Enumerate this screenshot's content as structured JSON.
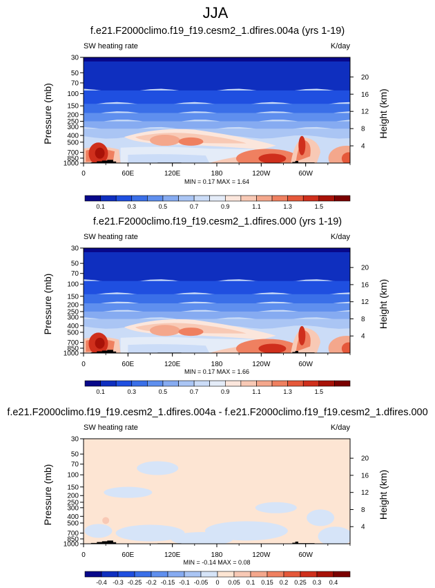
{
  "figure": {
    "title": "JJA"
  },
  "chart_data": [
    {
      "type": "heatmap",
      "title": "f.e21.F2000climo.f19_f19.cesm2_1.dfires.004a (yrs 1-19)",
      "left_label": "SW heating rate",
      "right_label": "K/day",
      "ylabel": "Pressure (mb)",
      "ylabel_right": "Height (km)",
      "y_ticks": [
        "30",
        "50",
        "70",
        "100",
        "150",
        "200",
        "250",
        "300",
        "400",
        "500",
        "700",
        "850",
        "1000"
      ],
      "y_tick_values": [
        30,
        50,
        70,
        100,
        150,
        200,
        250,
        300,
        400,
        500,
        700,
        850,
        1000
      ],
      "y_tick_labels_shown": [
        "30",
        "50",
        "70",
        "100",
        "150",
        "200",
        "250",
        "300",
        "400",
        "500",
        "700",
        "850",
        "1000"
      ],
      "height_ticks": [
        "20",
        "16",
        "12",
        "8",
        "4"
      ],
      "height_tick_values": [
        20,
        16,
        12,
        8,
        4
      ],
      "x_ticks": [
        "0",
        "60E",
        "120E",
        "180",
        "120W",
        "60W"
      ],
      "x_tick_values": [
        0,
        60,
        120,
        180,
        240,
        300
      ],
      "xlim": [
        0,
        360
      ],
      "ylim": [
        1000,
        30
      ],
      "minmax_text": "MIN =  0.17  MAX =  1.64",
      "colorbar": {
        "labels": [
          "0.1",
          "0.3",
          "0.5",
          "0.7",
          "0.9",
          "1.1",
          "1.3",
          "1.5"
        ],
        "colors": [
          "#08088a",
          "#0f2fbf",
          "#1f4fe0",
          "#3a6fe8",
          "#5f8fee",
          "#86abf1",
          "#aac5f4",
          "#cbdcf7",
          "#e4ecf8",
          "#fbe6dc",
          "#f8c9b5",
          "#f4a78c",
          "#ef8060",
          "#e5583a",
          "#cf2f1c",
          "#a81208",
          "#7a0000"
        ]
      },
      "palette": "diverging-blue-red"
    },
    {
      "type": "heatmap",
      "title": "f.e21.F2000climo.f19_f19.cesm2_1.dfires.000 (yrs 1-19)",
      "left_label": "SW heating rate",
      "right_label": "K/day",
      "ylabel": "Pressure (mb)",
      "ylabel_right": "Height (km)",
      "y_ticks": [
        "30",
        "50",
        "70",
        "100",
        "150",
        "200",
        "250",
        "300",
        "400",
        "500",
        "700",
        "850",
        "1000"
      ],
      "y_tick_values": [
        30,
        50,
        70,
        100,
        150,
        200,
        250,
        300,
        400,
        500,
        700,
        850,
        1000
      ],
      "height_ticks": [
        "20",
        "16",
        "12",
        "8",
        "4"
      ],
      "height_tick_values": [
        20,
        16,
        12,
        8,
        4
      ],
      "x_ticks": [
        "0",
        "60E",
        "120E",
        "180",
        "120W",
        "60W"
      ],
      "x_tick_values": [
        0,
        60,
        120,
        180,
        240,
        300
      ],
      "xlim": [
        0,
        360
      ],
      "ylim": [
        1000,
        30
      ],
      "minmax_text": "MIN =  0.17  MAX =  1.66",
      "colorbar": {
        "labels": [
          "0.1",
          "0.3",
          "0.5",
          "0.7",
          "0.9",
          "1.1",
          "1.3",
          "1.5"
        ],
        "colors": [
          "#08088a",
          "#0f2fbf",
          "#1f4fe0",
          "#3a6fe8",
          "#5f8fee",
          "#86abf1",
          "#aac5f4",
          "#cbdcf7",
          "#e4ecf8",
          "#fbe6dc",
          "#f8c9b5",
          "#f4a78c",
          "#ef8060",
          "#e5583a",
          "#cf2f1c",
          "#a81208",
          "#7a0000"
        ]
      },
      "palette": "diverging-blue-red"
    },
    {
      "type": "heatmap",
      "title": "f.e21.F2000climo.f19_f19.cesm2_1.dfires.004a - f.e21.F2000climo.f19_f19.cesm2_1.dfires.000",
      "left_label": "SW heating rate",
      "right_label": "K/day",
      "ylabel": "Pressure (mb)",
      "ylabel_right": "Height (km)",
      "y_ticks": [
        "30",
        "50",
        "70",
        "100",
        "150",
        "200",
        "250",
        "300",
        "400",
        "500",
        "700",
        "850",
        "1000"
      ],
      "y_tick_values": [
        30,
        50,
        70,
        100,
        150,
        200,
        250,
        300,
        400,
        500,
        700,
        850,
        1000
      ],
      "height_ticks": [
        "20",
        "16",
        "12",
        "8",
        "4"
      ],
      "height_tick_values": [
        20,
        16,
        12,
        8,
        4
      ],
      "x_ticks": [
        "0",
        "60E",
        "120E",
        "180",
        "120W",
        "60W"
      ],
      "x_tick_values": [
        0,
        60,
        120,
        180,
        240,
        300
      ],
      "xlim": [
        0,
        360
      ],
      "ylim": [
        1000,
        30
      ],
      "minmax_text": "MIN = -0.14  MAX =  0.08",
      "colorbar": {
        "labels": [
          "-0.4",
          "-0.3",
          "-0.25",
          "-0.2",
          "-0.15",
          "-0.1",
          "-0.05",
          "0",
          "0.05",
          "0.1",
          "0.15",
          "0.2",
          "0.25",
          "0.3",
          "0.4"
        ],
        "colors": [
          "#08088a",
          "#0f2fbf",
          "#1f4fe0",
          "#3a6fe8",
          "#5f8fee",
          "#86abf1",
          "#aac5f4",
          "#d6e4f8",
          "#fde5d3",
          "#f8c9b5",
          "#f4a78c",
          "#ef8060",
          "#e5583a",
          "#cf2f1c",
          "#a81208",
          "#7a0000"
        ]
      },
      "palette": "difference"
    }
  ]
}
